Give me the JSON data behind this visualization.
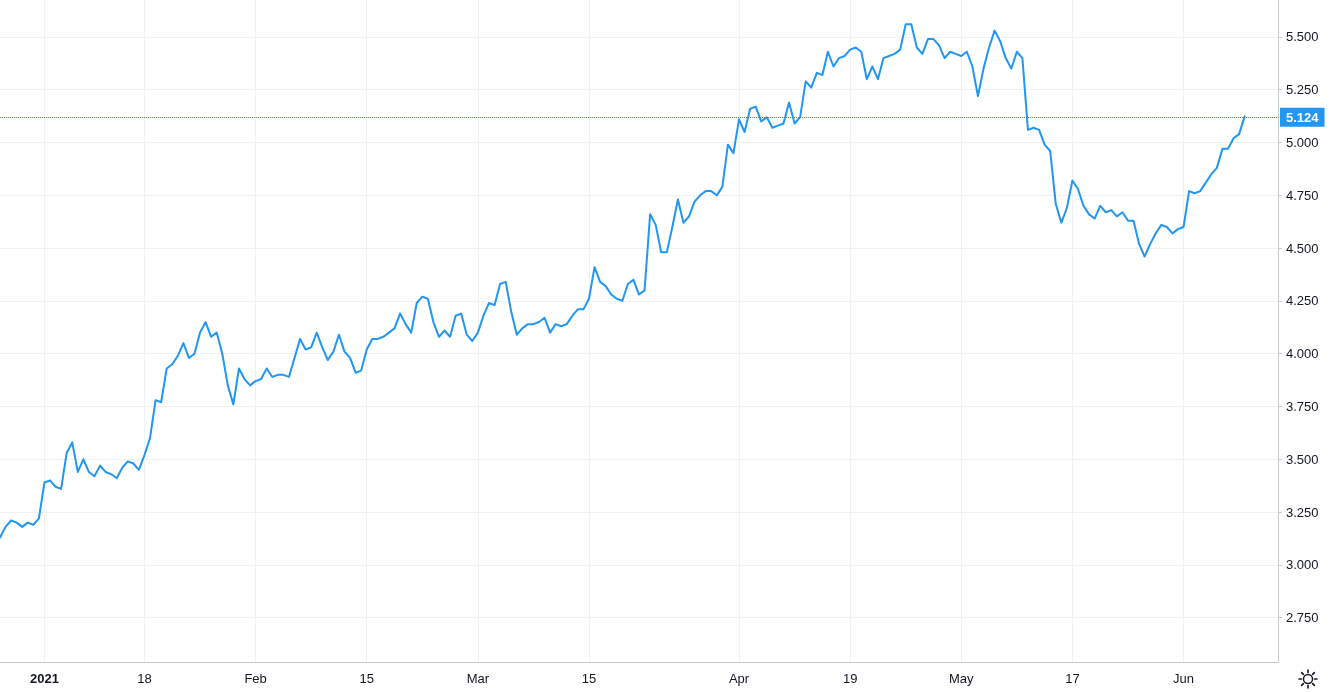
{
  "chart_data": {
    "type": "line",
    "categories": [
      null,
      null,
      null,
      null,
      null,
      null,
      null,
      null,
      "2021",
      null,
      null,
      null,
      null,
      null,
      null,
      null,
      null,
      null,
      null,
      null,
      null,
      null,
      null,
      null,
      null,
      null,
      "18",
      null,
      null,
      null,
      null,
      null,
      null,
      null,
      null,
      null,
      null,
      null,
      null,
      null,
      null,
      null,
      null,
      null,
      null,
      null,
      "Feb",
      null,
      null,
      null,
      null,
      null,
      null,
      null,
      null,
      null,
      null,
      null,
      null,
      null,
      null,
      null,
      null,
      null,
      null,
      null,
      "15",
      null,
      null,
      null,
      null,
      null,
      null,
      null,
      null,
      null,
      null,
      null,
      null,
      null,
      null,
      null,
      null,
      null,
      null,
      null,
      "Mar",
      null,
      null,
      null,
      null,
      null,
      null,
      null,
      null,
      null,
      null,
      null,
      null,
      null,
      null,
      null,
      null,
      null,
      null,
      null,
      "15",
      null,
      null,
      null,
      null,
      null,
      null,
      null,
      null,
      null,
      null,
      null,
      null,
      null,
      null,
      null,
      null,
      null,
      null,
      null,
      null,
      null,
      null,
      null,
      null,
      null,
      null,
      "Apr",
      null,
      null,
      null,
      null,
      null,
      null,
      null,
      null,
      null,
      null,
      null,
      null,
      null,
      null,
      null,
      null,
      null,
      null,
      null,
      "19",
      null,
      null,
      null,
      null,
      null,
      null,
      null,
      null,
      null,
      null,
      null,
      null,
      null,
      null,
      null,
      null,
      null,
      null,
      null,
      "May",
      null,
      null,
      null,
      null,
      null,
      null,
      null,
      null,
      null,
      null,
      null,
      null,
      null,
      null,
      null,
      null,
      null,
      null,
      null,
      "17",
      null,
      null,
      null,
      null,
      null,
      null,
      null,
      null,
      null,
      null,
      null,
      null,
      null,
      null,
      null,
      null,
      null,
      null,
      null,
      "Jun",
      null,
      null,
      null,
      null,
      null,
      null,
      null,
      null,
      null,
      null,
      null,
      null,
      null,
      null,
      null,
      null,
      null
    ],
    "series": [
      {
        "color": "#2196f3",
        "values": [
          3.13,
          3.18,
          3.21,
          3.2,
          3.18,
          3.2,
          3.19,
          3.22,
          3.39,
          3.4,
          3.37,
          3.36,
          3.53,
          3.58,
          3.44,
          3.5,
          3.44,
          3.42,
          3.47,
          3.44,
          3.43,
          3.41,
          3.46,
          3.49,
          3.48,
          3.45,
          3.52,
          3.6,
          3.78,
          3.77,
          3.93,
          3.95,
          3.99,
          4.05,
          3.98,
          4.0,
          4.1,
          4.15,
          4.08,
          4.1,
          4.0,
          3.85,
          3.76,
          3.93,
          3.88,
          3.85,
          3.87,
          3.88,
          3.93,
          3.89,
          3.9,
          3.9,
          3.89,
          3.98,
          4.07,
          4.02,
          4.03,
          4.1,
          4.03,
          3.97,
          4.01,
          4.09,
          4.01,
          3.98,
          3.91,
          3.92,
          4.02,
          4.07,
          4.07,
          4.08,
          4.1,
          4.12,
          4.19,
          4.14,
          4.1,
          4.24,
          4.27,
          4.26,
          4.15,
          4.08,
          4.11,
          4.08,
          4.18,
          4.19,
          4.09,
          4.06,
          4.1,
          4.18,
          4.24,
          4.23,
          4.33,
          4.34,
          4.2,
          4.09,
          4.12,
          4.14,
          4.14,
          4.15,
          4.17,
          4.1,
          4.14,
          4.13,
          4.14,
          4.18,
          4.21,
          4.21,
          4.26,
          4.41,
          4.34,
          4.32,
          4.28,
          4.26,
          4.25,
          4.33,
          4.35,
          4.28,
          4.3,
          4.66,
          4.61,
          4.48,
          4.48,
          4.6,
          4.73,
          4.62,
          4.65,
          4.72,
          4.75,
          4.77,
          4.77,
          4.75,
          4.79,
          4.99,
          4.95,
          5.11,
          5.05,
          5.16,
          5.17,
          5.1,
          5.12,
          5.07,
          5.08,
          5.09,
          5.19,
          5.09,
          5.12,
          5.29,
          5.26,
          5.33,
          5.32,
          5.43,
          5.36,
          5.4,
          5.41,
          5.44,
          5.45,
          5.43,
          5.3,
          5.36,
          5.3,
          5.4,
          5.41,
          5.42,
          5.44,
          5.56,
          5.56,
          5.45,
          5.42,
          5.49,
          5.49,
          5.46,
          5.4,
          5.43,
          5.42,
          5.41,
          5.43,
          5.36,
          5.22,
          5.35,
          5.45,
          5.53,
          5.48,
          5.4,
          5.35,
          5.43,
          5.4,
          5.06,
          5.07,
          5.06,
          4.99,
          4.96,
          4.71,
          4.62,
          4.69,
          4.82,
          4.78,
          4.7,
          4.66,
          4.64,
          4.7,
          4.67,
          4.68,
          4.65,
          4.67,
          4.63,
          4.63,
          4.52,
          4.46,
          4.52,
          4.57,
          4.61,
          4.6,
          4.57,
          4.59,
          4.6,
          4.77,
          4.76,
          4.77,
          4.81,
          4.85,
          4.88,
          4.97,
          4.97,
          5.02,
          5.04,
          5.124,
          null,
          null,
          null,
          null,
          null,
          null
        ]
      }
    ],
    "ylim": [
      2.54,
      5.675
    ],
    "yticks": [
      {
        "value": 2.75,
        "label": "2.750"
      },
      {
        "value": 3,
        "label": "3.000"
      },
      {
        "value": 3.25,
        "label": "3.250"
      },
      {
        "value": 3.5,
        "label": "3.500"
      },
      {
        "value": 3.75,
        "label": "3.750"
      },
      {
        "value": 4,
        "label": "4.000"
      },
      {
        "value": 4.25,
        "label": "4.250"
      },
      {
        "value": 4.5,
        "label": "4.500"
      },
      {
        "value": 4.75,
        "label": "4.750"
      },
      {
        "value": 5,
        "label": "5.000"
      },
      {
        "value": 5.25,
        "label": "5.250"
      },
      {
        "value": 5.5,
        "label": "5.500"
      }
    ],
    "ref_lines": [
      {
        "axis": "y",
        "value": 5.124,
        "label": "5.124",
        "color": "#2196f3",
        "line_style": "dotted"
      }
    ],
    "grid": true,
    "marker": "none",
    "line_style": "solid"
  }
}
